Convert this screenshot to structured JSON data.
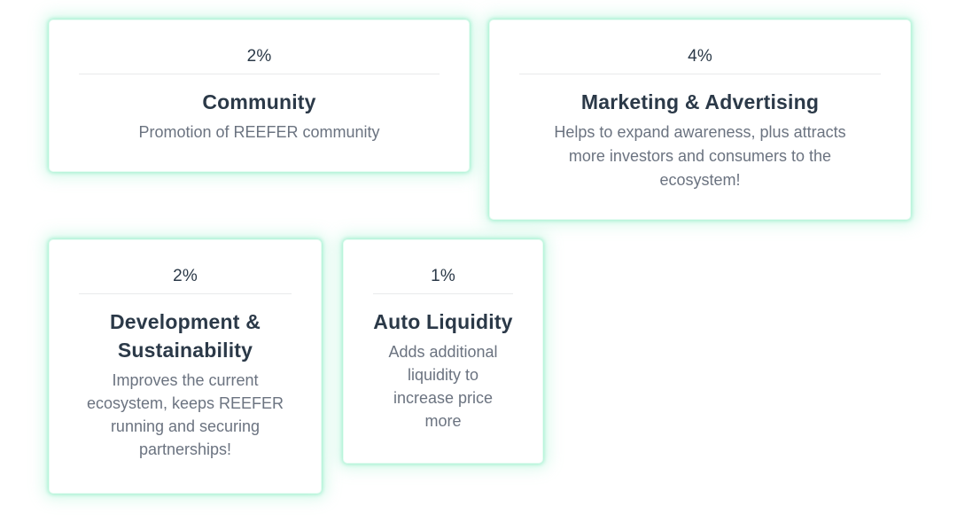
{
  "section_name": "token-tax-breakdown",
  "colors": {
    "background": "#ffffff",
    "card-background": "#ffffff",
    "glow": "#9df0cd",
    "heading": "#2b3948",
    "percent": "#2b3948",
    "description": "#6b7380",
    "divider": "#e9eaeb"
  },
  "cards": [
    {
      "percent": "2%",
      "title_lines": [
        "Community"
      ],
      "description_lines": [
        "Promotion of REEFER community"
      ]
    },
    {
      "percent": "4%",
      "title_lines": [
        "Marketing & Advertising"
      ],
      "description_lines": [
        "Helps to expand awareness, plus attracts",
        "more investors and consumers to the",
        "ecosystem!"
      ]
    },
    {
      "percent": "2%",
      "title_lines": [
        "Development &",
        "Sustainability"
      ],
      "description_lines": [
        "Improves the current",
        "ecosystem, keeps REEFER",
        "running and securing",
        "partnerships!"
      ]
    },
    {
      "percent": "1%",
      "title_lines": [
        "Auto Liquidity"
      ],
      "description_lines": [
        "Adds additional",
        "liquidity to",
        "increase price",
        "more"
      ]
    }
  ]
}
